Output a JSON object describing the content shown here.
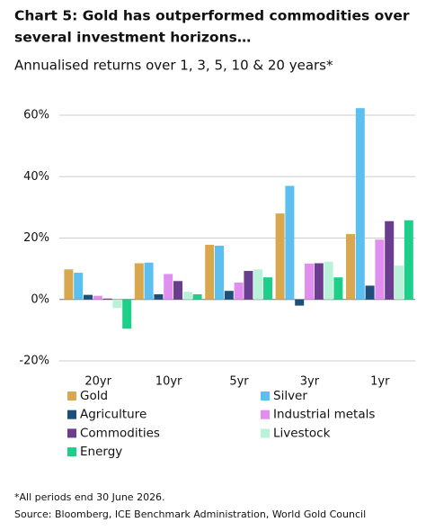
{
  "chart_data": {
    "type": "bar",
    "title": [
      "Chart 5: Gold has outperformed commodities over",
      "several investment horizons…"
    ],
    "subtitle": "Annualised returns over 1, 3, 5, 10 & 20 years*",
    "categories": [
      "20yr",
      "10yr",
      "5yr",
      "3yr",
      "1yr"
    ],
    "series": [
      {
        "name": "Gold",
        "color": "#d9a84e",
        "values": [
          9.8,
          11.8,
          17.8,
          28,
          21.3
        ]
      },
      {
        "name": "Silver",
        "color": "#5bc0f0",
        "values": [
          8.7,
          12,
          17.5,
          37,
          62.3
        ]
      },
      {
        "name": "Agriculture",
        "color": "#1d4f7a",
        "values": [
          1.5,
          1.7,
          2.8,
          -2,
          4.5
        ]
      },
      {
        "name": "Industrial metals",
        "color": "#e08ef0",
        "values": [
          1.2,
          8.3,
          5.5,
          11.7,
          19.5
        ]
      },
      {
        "name": "Commodities",
        "color": "#6a3d8e",
        "values": [
          0.3,
          6,
          9.3,
          11.8,
          25.5
        ]
      },
      {
        "name": "Livestock",
        "color": "#b8f2d8",
        "values": [
          -2.8,
          2.5,
          9.8,
          12.3,
          11
        ]
      },
      {
        "name": "Energy",
        "color": "#1ecf8a",
        "values": [
          -9.5,
          1.7,
          7.2,
          7.2,
          25.8
        ]
      }
    ],
    "ylim": [
      -20,
      60
    ],
    "yticks": [
      {
        "value": -20,
        "label": "-20%"
      },
      {
        "value": 0,
        "label": "0%"
      },
      {
        "value": 20,
        "label": "20%"
      },
      {
        "value": 40,
        "label": "40%"
      },
      {
        "value": 60,
        "label": "60%"
      }
    ],
    "grid": true,
    "footnotes": [
      "*All periods end 30 June 2026.",
      "Source: Bloomberg, ICE Benchmark Administration, World Gold Council"
    ]
  }
}
